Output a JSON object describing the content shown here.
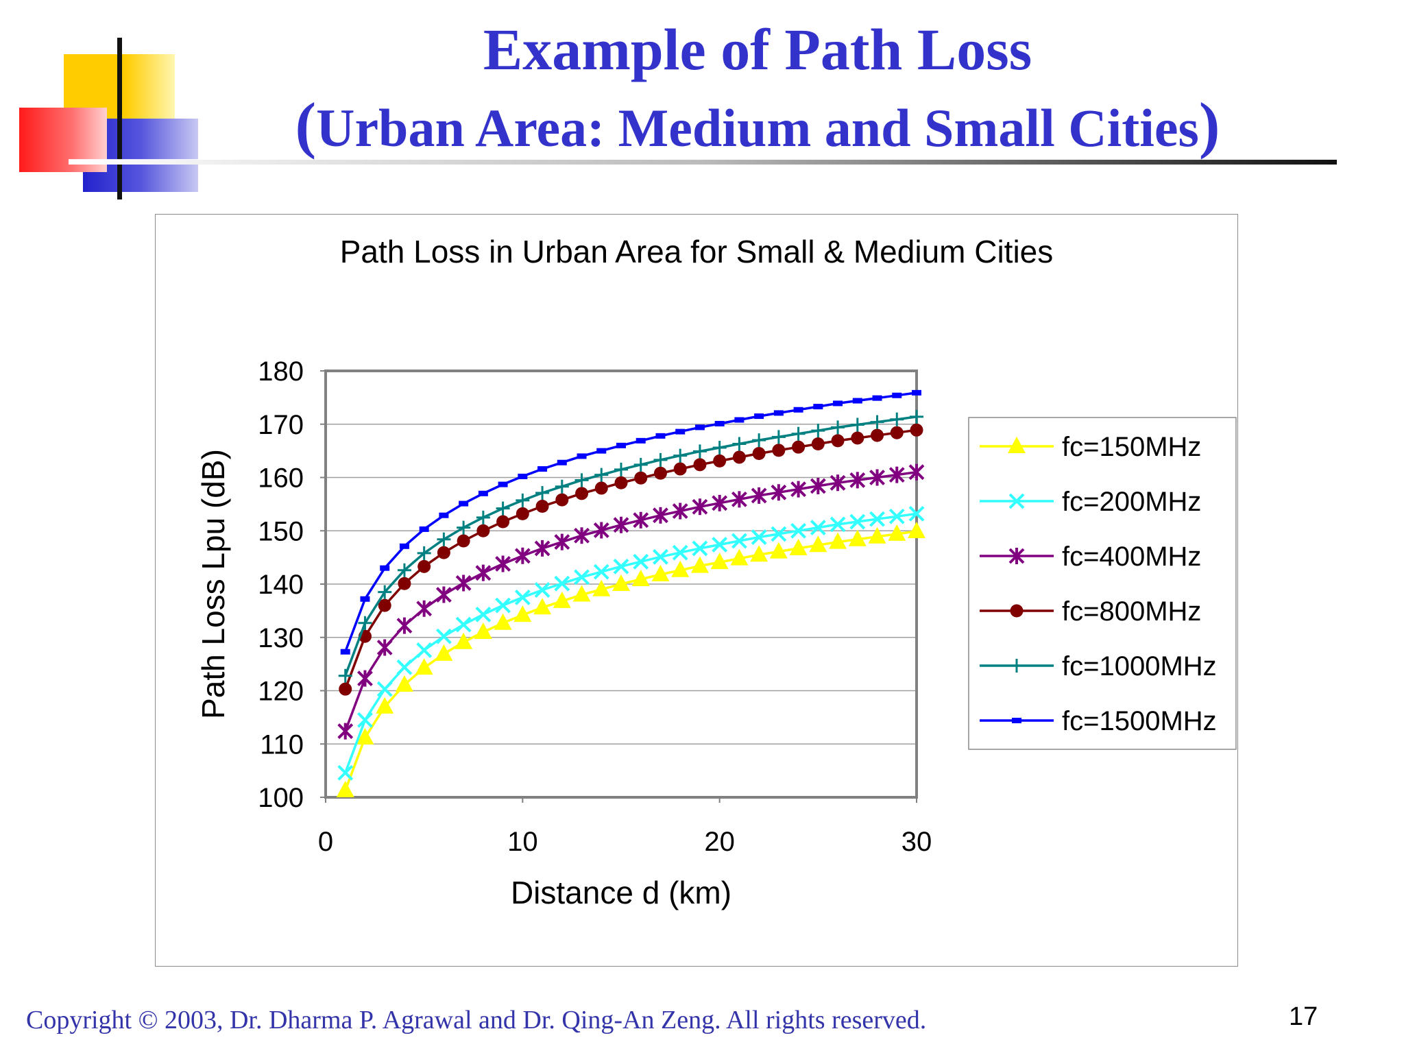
{
  "slide": {
    "title": "Example of Path Loss",
    "subtitle_open": "(",
    "subtitle": "Urban Area: Medium and Small Cities",
    "subtitle_close": ")",
    "footer": "Copyright © 2003, Dr. Dharma P. Agrawal and Dr. Qing-An Zeng. All rights reserved.",
    "page_number": "17",
    "title_color": "#3333cc"
  },
  "chart_data": {
    "type": "line",
    "title": "Path Loss in Urban Area for Small & Medium Cities",
    "xlabel": "Distance d (km)",
    "ylabel": "Path Loss Lpu (dB)",
    "xlim": [
      0,
      30
    ],
    "ylim": [
      100,
      180
    ],
    "xticks": [
      0,
      10,
      20,
      30
    ],
    "yticks": [
      100,
      110,
      120,
      130,
      140,
      150,
      160,
      170,
      180
    ],
    "grid": "horizontal",
    "legend_position": "right",
    "x": [
      1,
      2,
      3,
      4,
      5,
      6,
      7,
      8,
      9,
      10,
      11,
      12,
      13,
      14,
      15,
      16,
      17,
      18,
      19,
      20,
      21,
      22,
      23,
      24,
      25,
      26,
      27,
      28,
      29,
      30
    ],
    "series": [
      {
        "name": "fc=150MHz",
        "color": "#ffff00",
        "marker": "triangle",
        "values": [
          101.3,
          111.2,
          117.0,
          121.1,
          124.3,
          126.9,
          129.1,
          131.0,
          132.7,
          134.2,
          135.6,
          136.8,
          138.0,
          139.0,
          140.0,
          140.9,
          141.8,
          142.6,
          143.4,
          144.1,
          144.8,
          145.5,
          146.1,
          146.7,
          147.3,
          147.9,
          148.4,
          148.9,
          149.4,
          149.9
        ]
      },
      {
        "name": "fc=200MHz",
        "color": "#33ffff",
        "marker": "x",
        "values": [
          104.6,
          114.5,
          120.3,
          124.4,
          127.6,
          130.2,
          132.4,
          134.3,
          136.0,
          137.5,
          138.9,
          140.1,
          141.3,
          142.3,
          143.3,
          144.2,
          145.1,
          145.9,
          146.7,
          147.4,
          148.1,
          148.8,
          149.4,
          150.0,
          150.6,
          151.2,
          151.7,
          152.2,
          152.7,
          153.2
        ]
      },
      {
        "name": "fc=400MHz",
        "color": "#800080",
        "marker": "asterisk",
        "values": [
          112.4,
          122.3,
          128.1,
          132.2,
          135.4,
          138.0,
          140.2,
          142.1,
          143.8,
          145.3,
          146.7,
          147.9,
          149.1,
          150.1,
          151.1,
          152.0,
          152.9,
          153.7,
          154.5,
          155.2,
          155.9,
          156.6,
          157.2,
          157.8,
          158.4,
          159.0,
          159.5,
          160.0,
          160.5,
          161.0
        ]
      },
      {
        "name": "fc=800MHz",
        "color": "#800000",
        "marker": "circle",
        "values": [
          120.3,
          130.2,
          136.0,
          140.1,
          143.3,
          145.9,
          148.1,
          150.0,
          151.7,
          153.2,
          154.6,
          155.8,
          157.0,
          158.0,
          159.0,
          159.9,
          160.8,
          161.6,
          162.4,
          163.1,
          163.8,
          164.5,
          165.1,
          165.7,
          166.3,
          166.9,
          167.4,
          167.9,
          168.4,
          168.9
        ]
      },
      {
        "name": "fc=1000MHz",
        "color": "#008080",
        "marker": "plus",
        "values": [
          122.8,
          132.7,
          138.5,
          142.6,
          145.8,
          148.4,
          150.6,
          152.5,
          154.2,
          155.7,
          157.1,
          158.3,
          159.5,
          160.5,
          161.5,
          162.4,
          163.3,
          164.1,
          164.9,
          165.6,
          166.3,
          167.0,
          167.6,
          168.2,
          168.8,
          169.4,
          169.9,
          170.4,
          170.9,
          171.4
        ]
      },
      {
        "name": "fc=1500MHz",
        "color": "#0000ff",
        "marker": "dash",
        "values": [
          127.3,
          137.2,
          143.0,
          147.1,
          150.3,
          152.9,
          155.1,
          157.0,
          158.7,
          160.2,
          161.6,
          162.8,
          164.0,
          165.0,
          166.0,
          166.9,
          167.8,
          168.6,
          169.4,
          170.1,
          170.8,
          171.5,
          172.1,
          172.7,
          173.3,
          173.9,
          174.4,
          174.9,
          175.4,
          175.9
        ]
      }
    ]
  }
}
